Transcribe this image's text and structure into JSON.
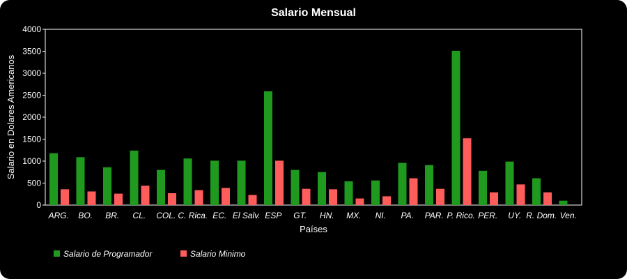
{
  "chart_data": {
    "type": "bar",
    "title": "Salario Mensual",
    "xlabel": "Países",
    "ylabel": "Salario en Dolares Americanos",
    "ylim": [
      0,
      4000
    ],
    "yticks": [
      0,
      500,
      1000,
      1500,
      2000,
      2500,
      3000,
      3500,
      4000
    ],
    "grid": false,
    "legend_position": "bottom-left",
    "categories": [
      "ARG.",
      "BO.",
      "BR.",
      "CL.",
      "COL.",
      "C. Rica.",
      "EC.",
      "El Salv.",
      "ESP",
      "GT.",
      "HN.",
      "MX.",
      "NI.",
      "PA.",
      "PAR.",
      "P. Rico.",
      "PER.",
      "UY.",
      "R. Dom.",
      "Ven."
    ],
    "series": [
      {
        "name": "Salario  de Programador",
        "color": "#1f9a1f",
        "values": [
          1180,
          1090,
          860,
          1240,
          800,
          1060,
          1010,
          1010,
          2590,
          800,
          750,
          540,
          560,
          960,
          910,
          3510,
          780,
          990,
          610,
          100
        ]
      },
      {
        "name": "Salario Minimo",
        "color": "#ff5c5c",
        "values": [
          360,
          310,
          260,
          440,
          270,
          340,
          390,
          230,
          1010,
          370,
          360,
          150,
          200,
          610,
          370,
          1520,
          290,
          470,
          290,
          0
        ]
      }
    ]
  }
}
